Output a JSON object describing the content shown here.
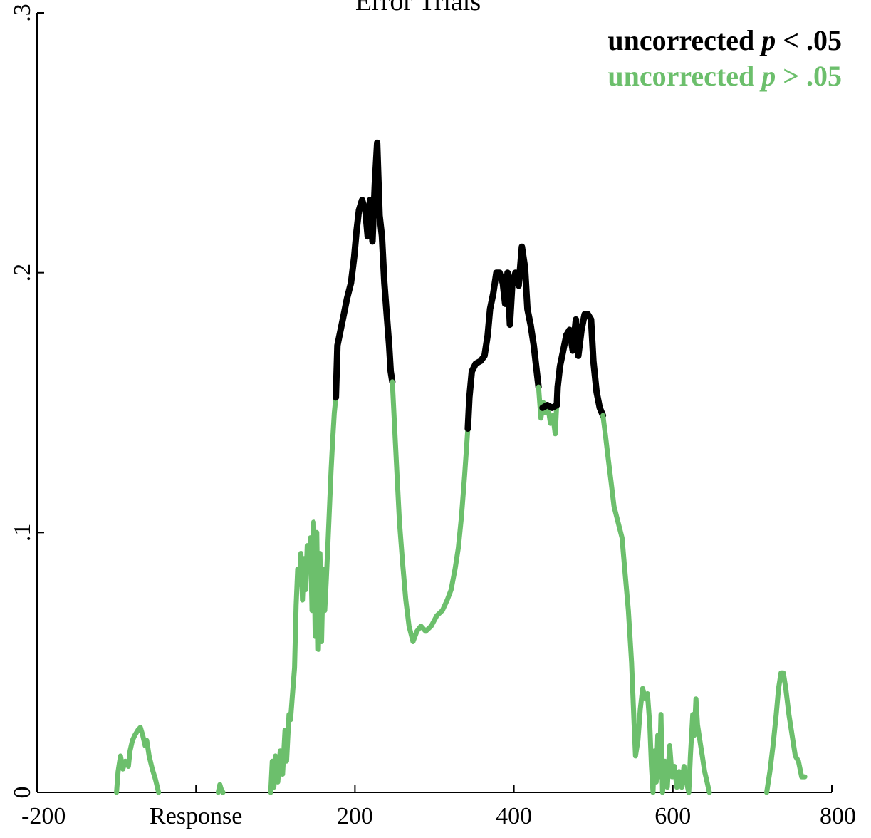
{
  "chart_data": {
    "type": "line",
    "title": "Error Trials",
    "xlabel": "",
    "ylabel": "",
    "xlim": [
      -200,
      800
    ],
    "ylim": [
      0,
      0.3
    ],
    "x_ticks": [
      {
        "value": -200,
        "label": "-200"
      },
      {
        "value": 0,
        "label": "Response"
      },
      {
        "value": 200,
        "label": "200"
      },
      {
        "value": 400,
        "label": "400"
      },
      {
        "value": 600,
        "label": "600"
      },
      {
        "value": 800,
        "label": "800"
      }
    ],
    "y_ticks": [
      {
        "value": 0,
        "label": "0"
      },
      {
        "value": 0.1,
        "label": ".1"
      },
      {
        "value": 0.2,
        "label": ".2"
      },
      {
        "value": 0.3,
        "label": ".3"
      }
    ],
    "legend": {
      "position": "top-right",
      "entries": [
        {
          "label": "uncorrected",
          "italic": "p",
          "suffix": " < .05",
          "color": "#000000"
        },
        {
          "label": "uncorrected",
          "italic": "p",
          "suffix": " > .05",
          "color": "#6cbf6c"
        }
      ]
    },
    "colors": {
      "significant": "#000000",
      "nonsignificant": "#6cbf6c"
    },
    "series": [
      {
        "color": "#6cbf6c",
        "points": [
          [
            -100,
            0
          ],
          [
            -98,
            0.008
          ],
          [
            -95,
            0.014
          ],
          [
            -92,
            0.009
          ],
          [
            -89,
            0.012
          ],
          [
            -85,
            0.01
          ],
          [
            -83,
            0.016
          ],
          [
            -80,
            0.02
          ],
          [
            -77,
            0.022
          ],
          [
            -73,
            0.024
          ],
          [
            -70,
            0.025
          ],
          [
            -67,
            0.022
          ],
          [
            -64,
            0.018
          ],
          [
            -62,
            0.02
          ],
          [
            -59,
            0.014
          ],
          [
            -55,
            0.009
          ],
          [
            -51,
            0.005
          ],
          [
            -47,
            0
          ]
        ]
      },
      {
        "color": "#6cbf6c",
        "points": [
          [
            28,
            0
          ],
          [
            30,
            0.003
          ],
          [
            32,
            0.001
          ],
          [
            34,
            0
          ]
        ]
      },
      {
        "color": "#6cbf6c",
        "points": [
          [
            94,
            0
          ],
          [
            96,
            0.012
          ],
          [
            98,
            0.002
          ],
          [
            100,
            0.014
          ],
          [
            103,
            0.004
          ],
          [
            106,
            0.016
          ],
          [
            109,
            0.007
          ],
          [
            112,
            0.024
          ],
          [
            114,
            0.012
          ],
          [
            117,
            0.03
          ],
          [
            119,
            0.028
          ],
          [
            121,
            0.036
          ],
          [
            124,
            0.048
          ],
          [
            126,
            0.072
          ],
          [
            128,
            0.086
          ],
          [
            130,
            0.08
          ],
          [
            132,
            0.092
          ],
          [
            134,
            0.074
          ],
          [
            136,
            0.09
          ],
          [
            138,
            0.078
          ],
          [
            140,
            0.095
          ],
          [
            142,
            0.085
          ],
          [
            144,
            0.098
          ],
          [
            146,
            0.07
          ],
          [
            148,
            0.104
          ],
          [
            150,
            0.06
          ],
          [
            152,
            0.1
          ],
          [
            154,
            0.055
          ],
          [
            156,
            0.092
          ],
          [
            158,
            0.058
          ],
          [
            160,
            0.086
          ],
          [
            162,
            0.07
          ],
          [
            164,
            0.082
          ],
          [
            166,
            0.096
          ],
          [
            168,
            0.11
          ],
          [
            170,
            0.124
          ],
          [
            172,
            0.136
          ],
          [
            174,
            0.146
          ],
          [
            176,
            0.152
          ]
        ]
      },
      {
        "color": "#000000",
        "points": [
          [
            176,
            0.152
          ],
          [
            177,
            0.162
          ],
          [
            178,
            0.172
          ],
          [
            182,
            0.178
          ],
          [
            186,
            0.184
          ],
          [
            190,
            0.19
          ],
          [
            195,
            0.196
          ],
          [
            199,
            0.206
          ],
          [
            202,
            0.216
          ],
          [
            205,
            0.224
          ],
          [
            209,
            0.228
          ],
          [
            213,
            0.224
          ],
          [
            216,
            0.214
          ],
          [
            219,
            0.228
          ],
          [
            222,
            0.212
          ],
          [
            225,
            0.234
          ],
          [
            228,
            0.25
          ],
          [
            231,
            0.222
          ],
          [
            234,
            0.214
          ],
          [
            237,
            0.196
          ],
          [
            240,
            0.184
          ],
          [
            243,
            0.172
          ],
          [
            245,
            0.162
          ],
          [
            247,
            0.158
          ]
        ]
      },
      {
        "color": "#6cbf6c",
        "points": [
          [
            247,
            0.158
          ],
          [
            250,
            0.14
          ],
          [
            253,
            0.122
          ],
          [
            256,
            0.104
          ],
          [
            260,
            0.088
          ],
          [
            264,
            0.074
          ],
          [
            268,
            0.064
          ],
          [
            273,
            0.058
          ],
          [
            278,
            0.062
          ],
          [
            283,
            0.064
          ],
          [
            289,
            0.062
          ],
          [
            296,
            0.064
          ],
          [
            303,
            0.068
          ],
          [
            310,
            0.07
          ],
          [
            316,
            0.074
          ],
          [
            321,
            0.078
          ],
          [
            326,
            0.086
          ],
          [
            330,
            0.094
          ],
          [
            334,
            0.106
          ],
          [
            338,
            0.122
          ],
          [
            342,
            0.14
          ]
        ]
      },
      {
        "color": "#000000",
        "points": [
          [
            342,
            0.14
          ],
          [
            344,
            0.152
          ],
          [
            347,
            0.162
          ],
          [
            352,
            0.165
          ],
          [
            358,
            0.166
          ],
          [
            363,
            0.168
          ],
          [
            367,
            0.176
          ],
          [
            370,
            0.186
          ],
          [
            374,
            0.192
          ],
          [
            378,
            0.2
          ],
          [
            382,
            0.2
          ],
          [
            386,
            0.196
          ],
          [
            389,
            0.188
          ],
          [
            392,
            0.2
          ],
          [
            395,
            0.18
          ],
          [
            398,
            0.196
          ],
          [
            402,
            0.2
          ],
          [
            406,
            0.195
          ],
          [
            410,
            0.21
          ],
          [
            414,
            0.202
          ],
          [
            417,
            0.186
          ],
          [
            421,
            0.18
          ],
          [
            425,
            0.172
          ],
          [
            428,
            0.164
          ],
          [
            431,
            0.156
          ]
        ]
      },
      {
        "color": "#6cbf6c",
        "points": [
          [
            431,
            0.156
          ],
          [
            434,
            0.144
          ],
          [
            437,
            0.15
          ],
          [
            440,
            0.146
          ],
          [
            443,
            0.148
          ],
          [
            446,
            0.142
          ],
          [
            449,
            0.145
          ],
          [
            452,
            0.138
          ],
          [
            455,
            0.156
          ]
        ]
      },
      {
        "color": "#000000",
        "points": [
          [
            436,
            0.148
          ],
          [
            442,
            0.149
          ],
          [
            448,
            0.148
          ],
          [
            454,
            0.149
          ],
          [
            455,
            0.156
          ],
          [
            458,
            0.164
          ],
          [
            462,
            0.17
          ],
          [
            466,
            0.176
          ],
          [
            470,
            0.178
          ],
          [
            474,
            0.17
          ],
          [
            478,
            0.182
          ],
          [
            481,
            0.168
          ],
          [
            485,
            0.178
          ],
          [
            489,
            0.184
          ],
          [
            493,
            0.184
          ],
          [
            497,
            0.182
          ],
          [
            500,
            0.166
          ],
          [
            504,
            0.154
          ],
          [
            508,
            0.148
          ],
          [
            512,
            0.145
          ]
        ]
      },
      {
        "color": "#6cbf6c",
        "points": [
          [
            512,
            0.145
          ],
          [
            515,
            0.138
          ],
          [
            518,
            0.13
          ],
          [
            522,
            0.12
          ],
          [
            526,
            0.11
          ],
          [
            531,
            0.104
          ],
          [
            536,
            0.098
          ],
          [
            540,
            0.084
          ],
          [
            544,
            0.07
          ],
          [
            548,
            0.05
          ],
          [
            551,
            0.028
          ],
          [
            553,
            0.014
          ],
          [
            556,
            0.02
          ],
          [
            559,
            0.032
          ],
          [
            562,
            0.04
          ],
          [
            565,
            0.036
          ],
          [
            568,
            0.038
          ],
          [
            571,
            0.026
          ],
          [
            573,
            0.01
          ],
          [
            575,
            0
          ],
          [
            577,
            0.016
          ],
          [
            579,
            0.004
          ],
          [
            581,
            0.022
          ],
          [
            583,
            0.006
          ],
          [
            585,
            0.03
          ],
          [
            587,
            0
          ],
          [
            590,
            0.012
          ],
          [
            593,
            0.002
          ],
          [
            596,
            0.018
          ],
          [
            599,
            0.006
          ],
          [
            602,
            0.01
          ],
          [
            605,
            0.002
          ],
          [
            608,
            0.008
          ],
          [
            611,
            0.002
          ],
          [
            614,
            0.01
          ],
          [
            617,
            0.004
          ],
          [
            620,
            0
          ],
          [
            622,
            0.014
          ],
          [
            625,
            0.03
          ],
          [
            627,
            0.022
          ],
          [
            629,
            0.036
          ],
          [
            631,
            0.026
          ],
          [
            634,
            0.02
          ],
          [
            637,
            0.014
          ],
          [
            640,
            0.008
          ],
          [
            643,
            0.004
          ],
          [
            646,
            0
          ]
        ]
      },
      {
        "color": "#6cbf6c",
        "points": [
          [
            718,
            0
          ],
          [
            722,
            0.008
          ],
          [
            726,
            0.018
          ],
          [
            730,
            0.03
          ],
          [
            733,
            0.04
          ],
          [
            736,
            0.046
          ],
          [
            739,
            0.046
          ],
          [
            742,
            0.04
          ],
          [
            746,
            0.03
          ],
          [
            750,
            0.022
          ],
          [
            754,
            0.014
          ],
          [
            758,
            0.012
          ],
          [
            762,
            0.006
          ],
          [
            766,
            0.006
          ]
        ]
      }
    ]
  }
}
